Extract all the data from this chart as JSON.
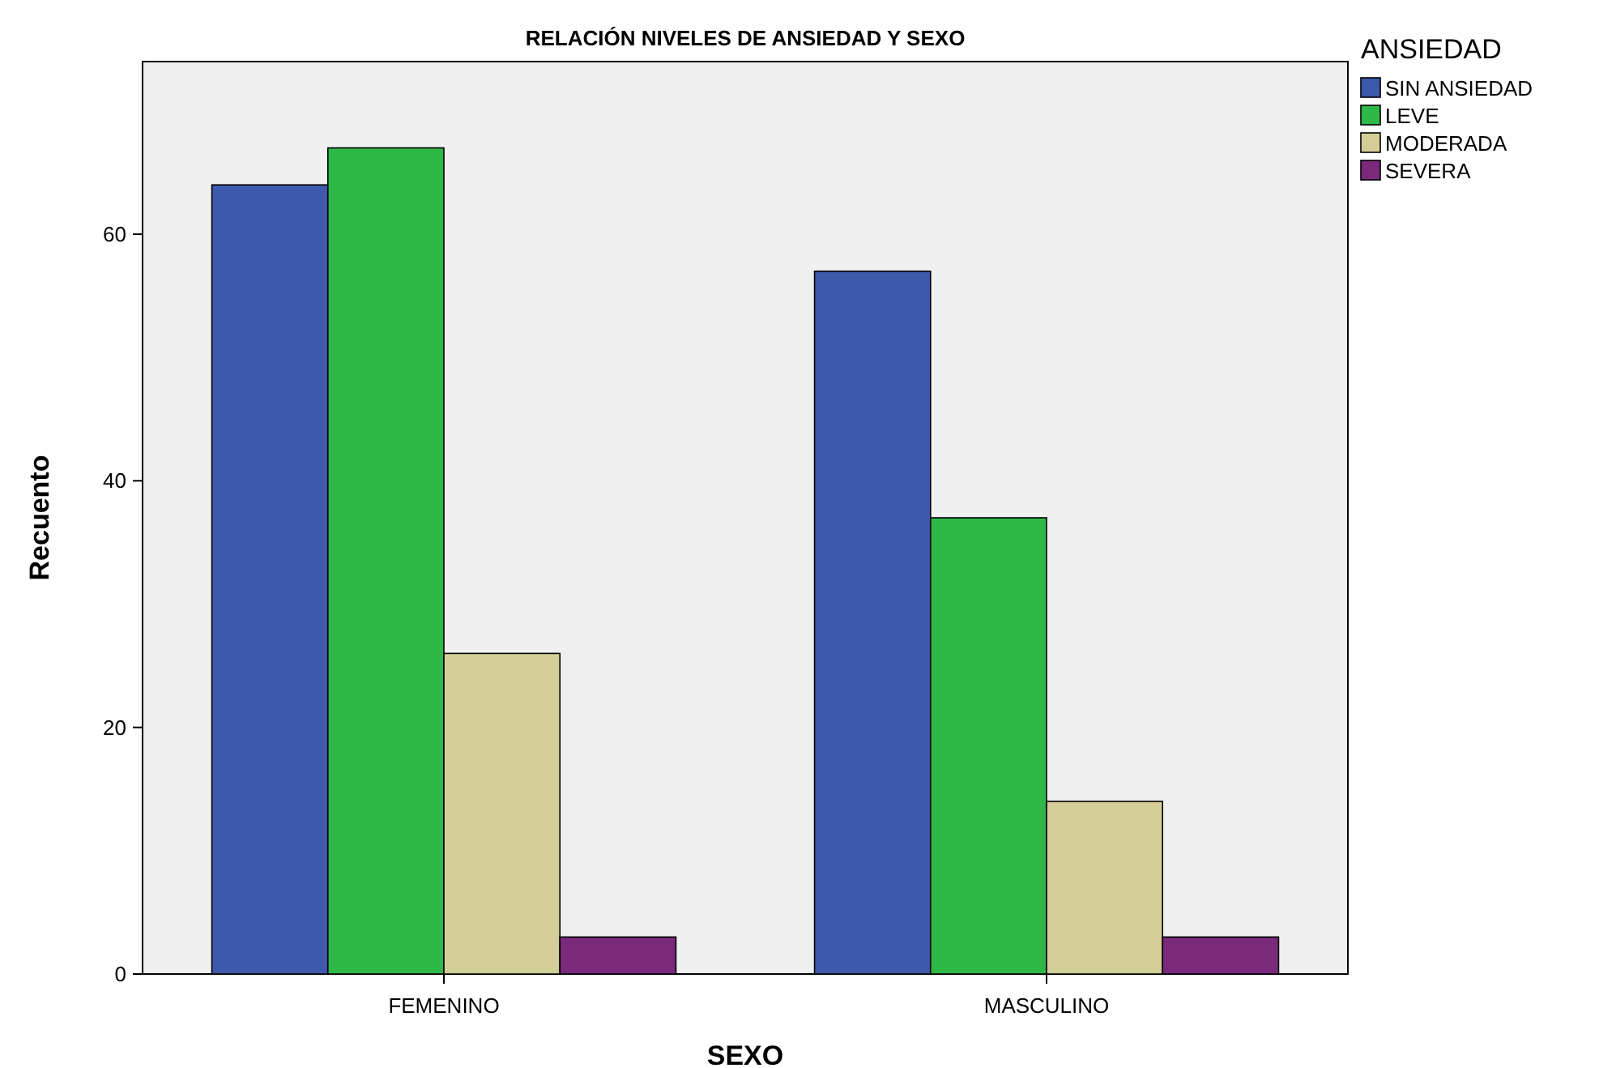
{
  "chart_data": {
    "type": "bar",
    "title": "RELACIÓN NIVELES DE ANSIEDAD  Y SEXO",
    "xlabel": "SEXO",
    "ylabel": "Recuento",
    "legend_title": "ANSIEDAD",
    "categories": [
      "FEMENINO",
      "MASCULINO"
    ],
    "series": [
      {
        "name": "SIN ANSIEDAD",
        "color": "#3e58ac",
        "values": [
          64,
          57
        ]
      },
      {
        "name": "LEVE",
        "color": "#2eb848",
        "values": [
          67,
          37
        ]
      },
      {
        "name": "MODERADA",
        "color": "#d3ce97",
        "values": [
          26,
          14
        ]
      },
      {
        "name": "SEVERA",
        "color": "#7b2a7b",
        "values": [
          3,
          3
        ]
      }
    ],
    "ylim": [
      0,
      74
    ],
    "yticks": [
      0,
      20,
      40,
      60
    ],
    "grid": false,
    "legend": "top right"
  }
}
